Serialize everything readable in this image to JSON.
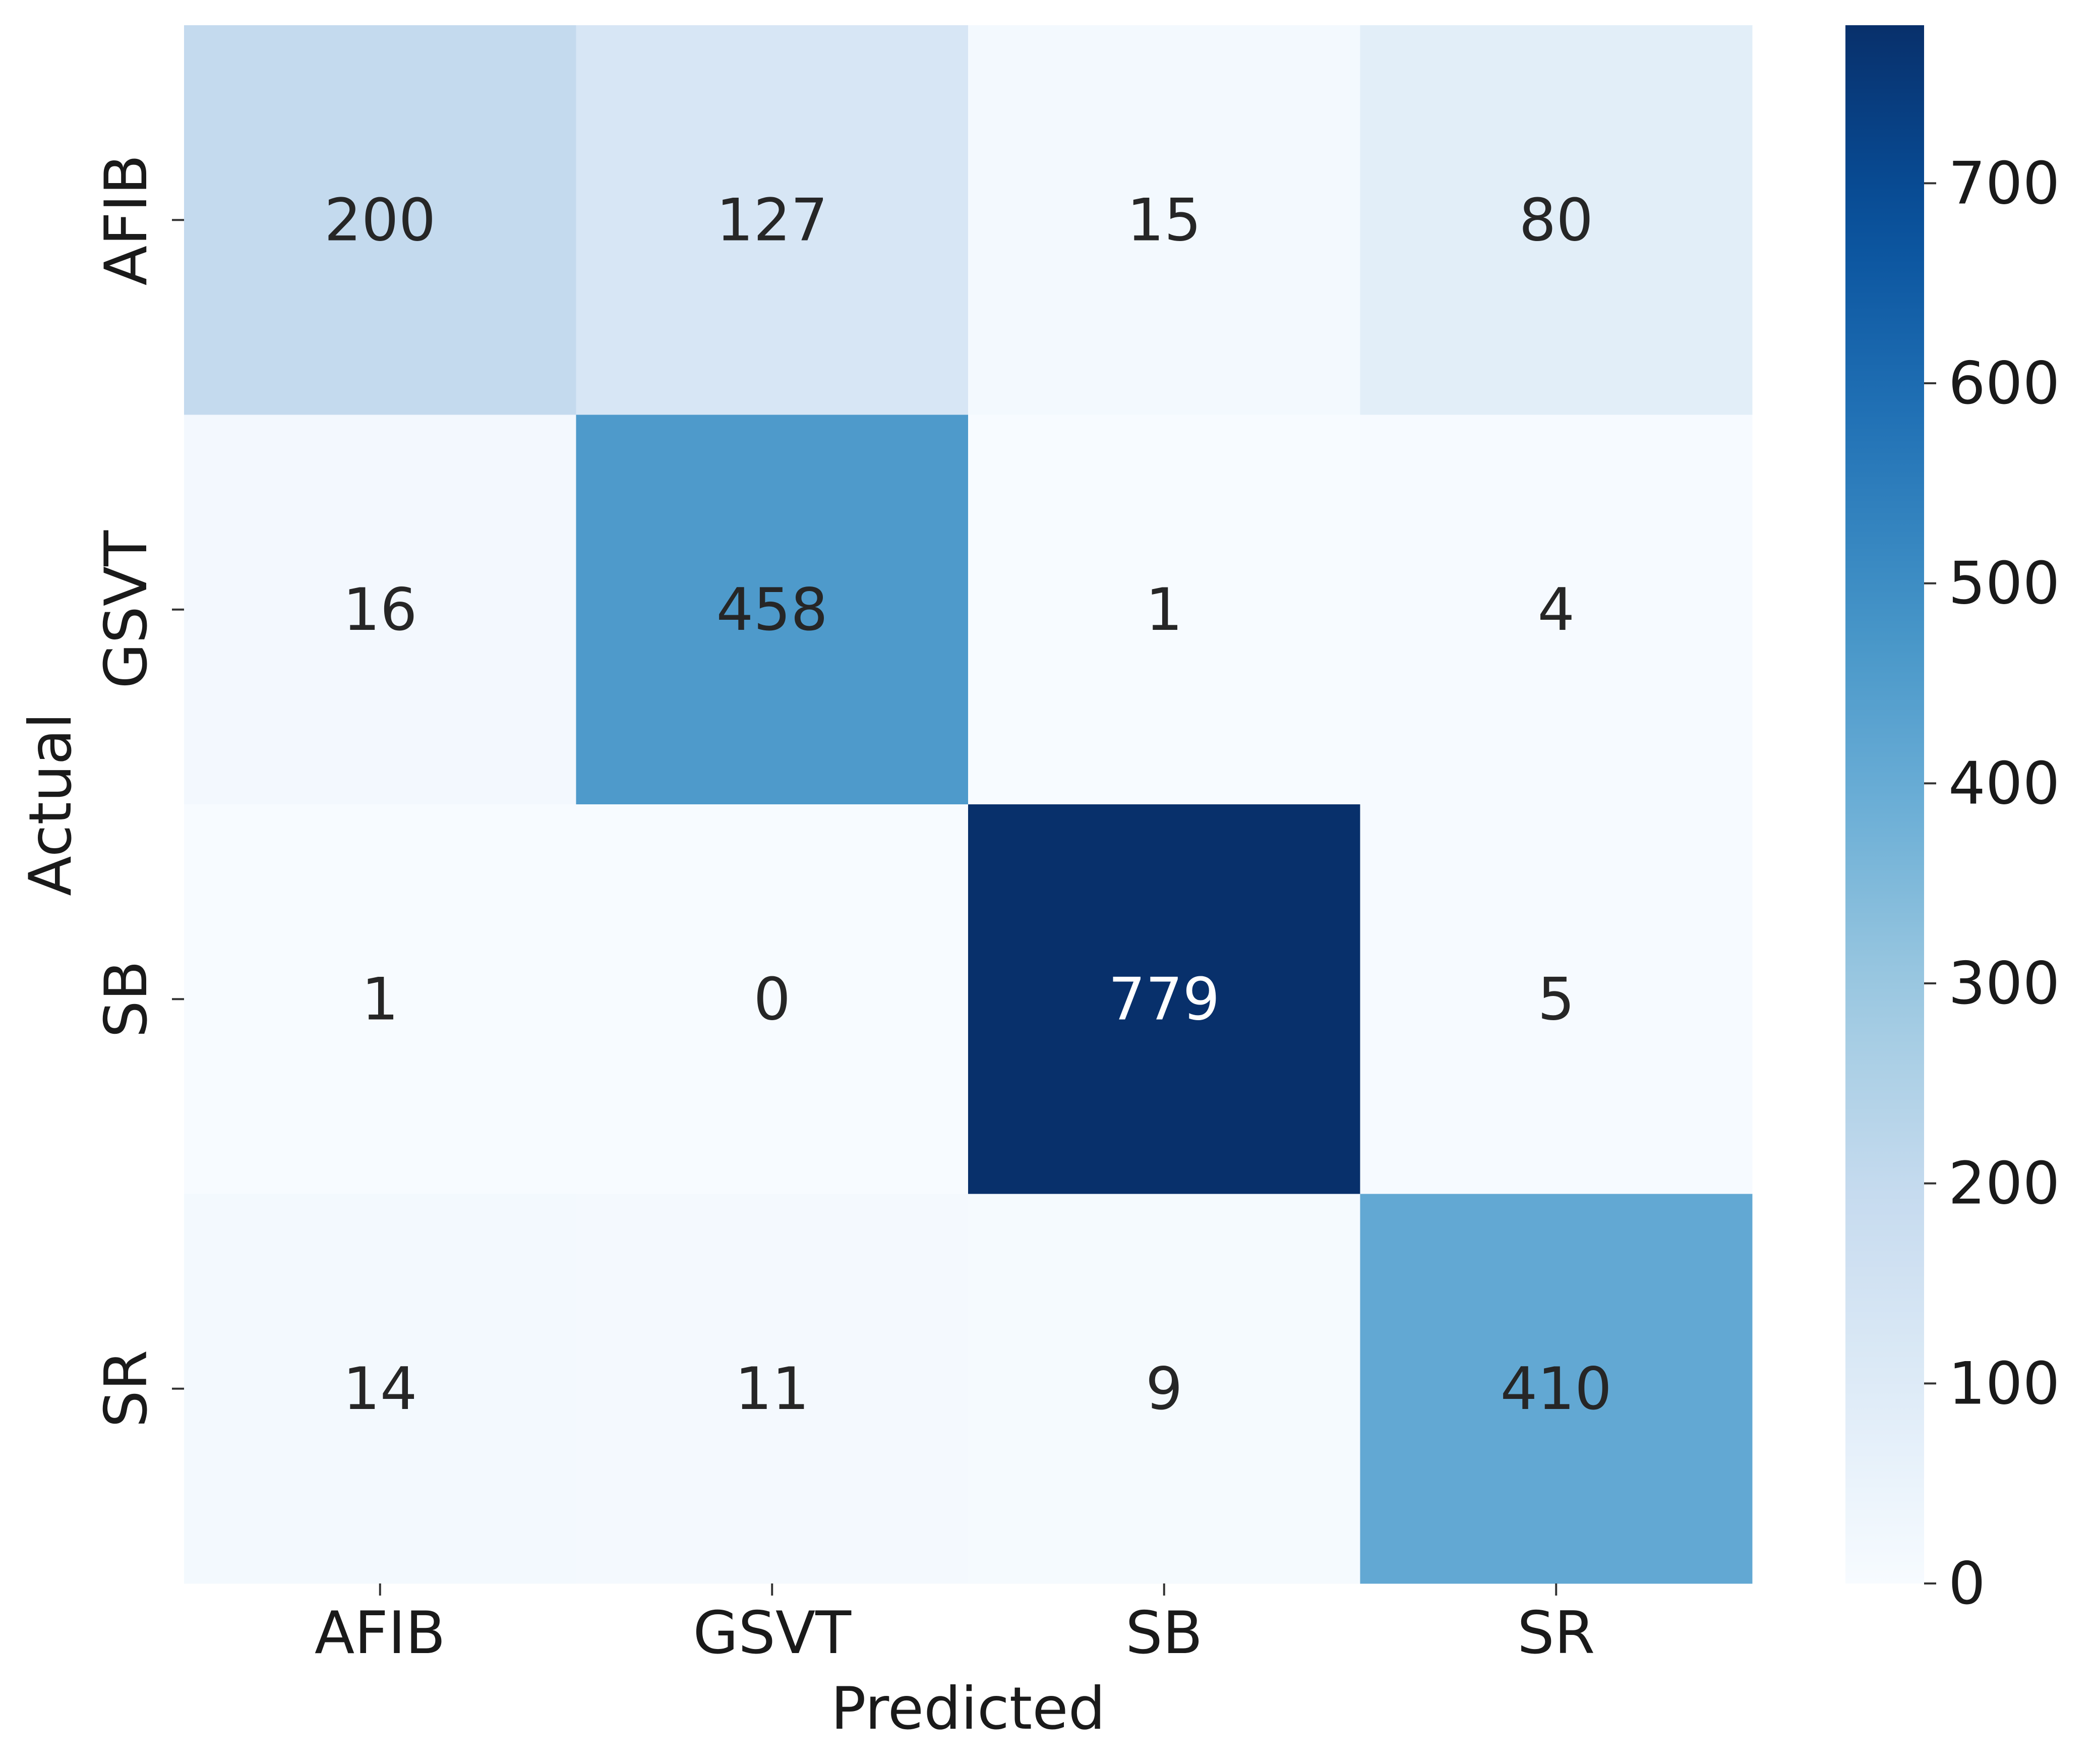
{
  "chart_data": {
    "type": "heatmap",
    "title": "",
    "xlabel": "Predicted",
    "ylabel": "Actual",
    "x_categories": [
      "AFIB",
      "GSVT",
      "SB",
      "SR"
    ],
    "y_categories": [
      "AFIB",
      "GSVT",
      "SB",
      "SR"
    ],
    "values": [
      [
        200,
        127,
        15,
        80
      ],
      [
        16,
        458,
        1,
        4
      ],
      [
        1,
        0,
        779,
        5
      ],
      [
        14,
        11,
        9,
        410
      ]
    ],
    "colormap": "Blues",
    "colorbar": {
      "min": 0,
      "max": 779,
      "ticks": [
        0,
        100,
        200,
        300,
        400,
        500,
        600,
        700
      ],
      "tick_labels": [
        "0",
        "100",
        "200",
        "300",
        "400",
        "500",
        "600",
        "700"
      ]
    },
    "grid": false
  }
}
